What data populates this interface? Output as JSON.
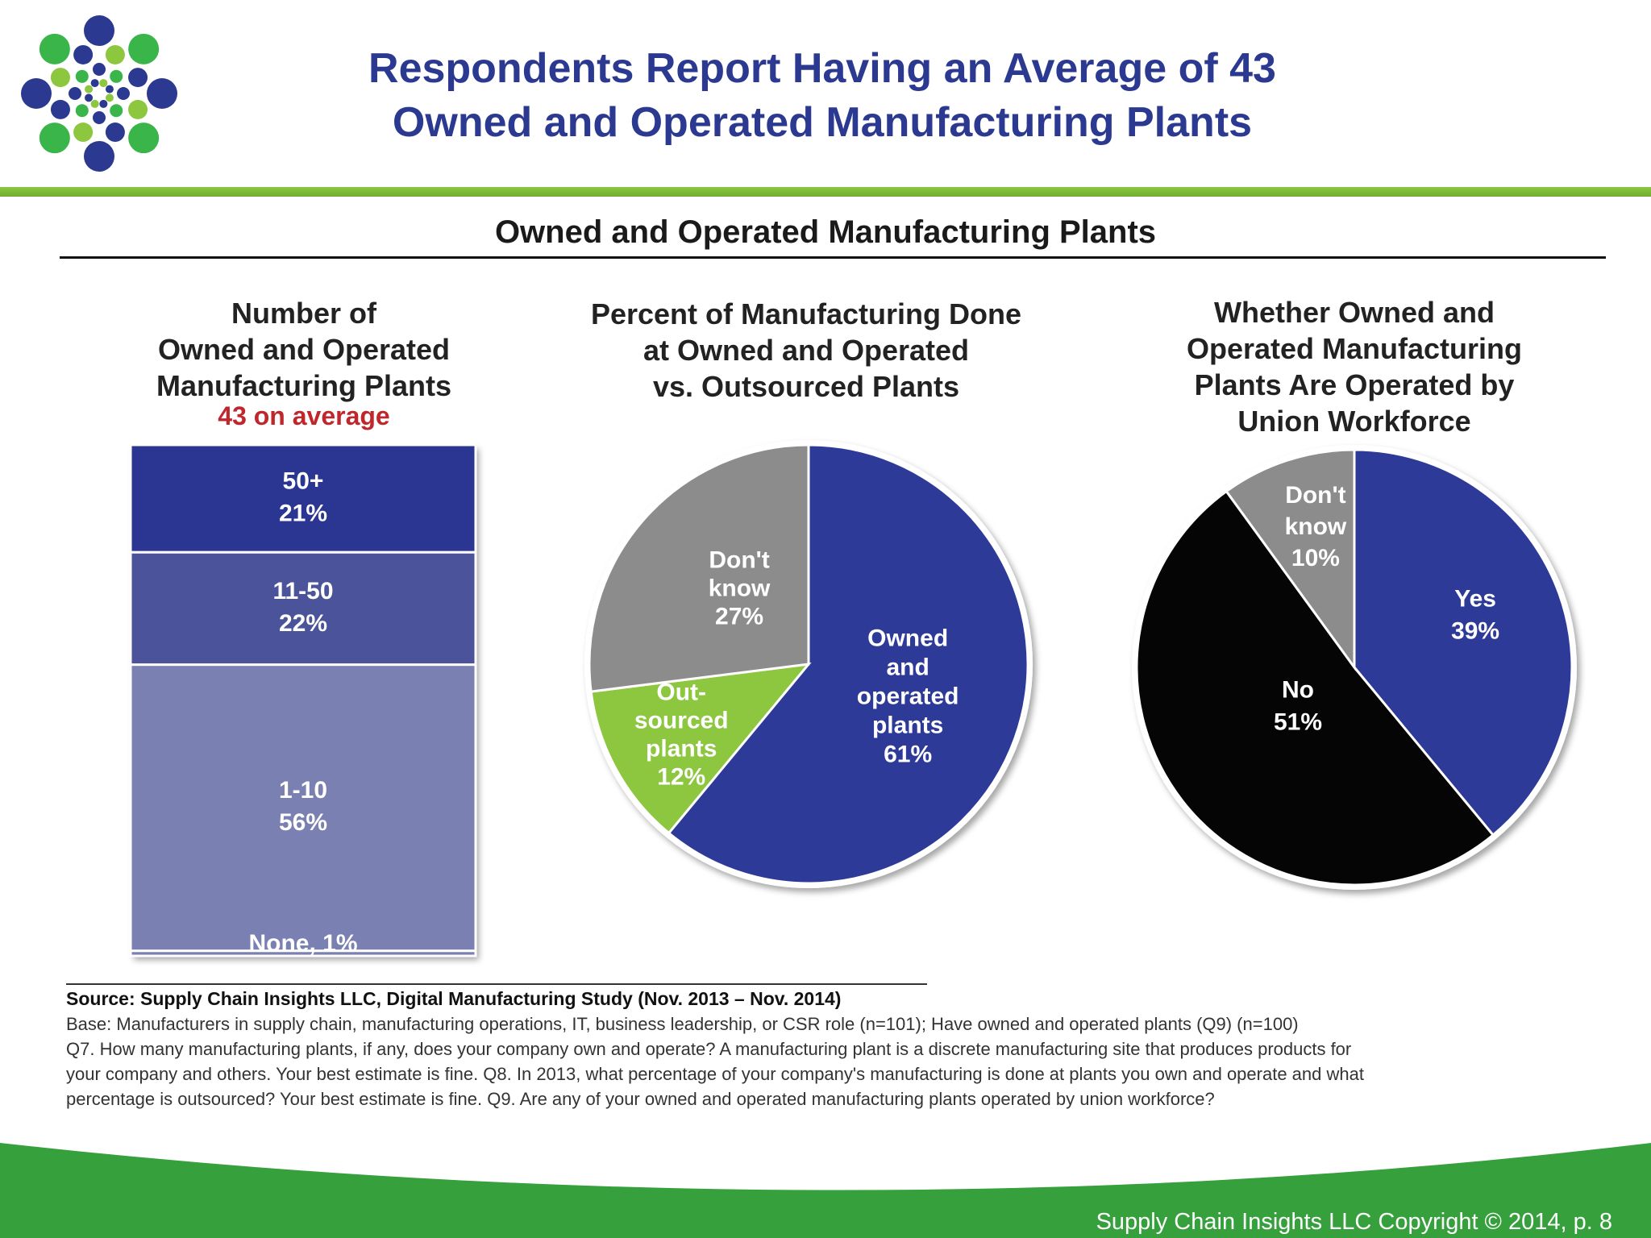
{
  "slide": {
    "title_line1": "Respondents Report Having an Average of 43",
    "title_line2": "Owned and Operated Manufacturing Plants",
    "copyright": "Supply Chain Insights LLC Copyright © 2014, p. 8"
  },
  "colors": {
    "title": "#2b3990",
    "accent_green": "#7cbf3a",
    "footer_green": "#35a03c",
    "average_note": "#c0272d"
  },
  "panel": {
    "title": "Owned and Operated Manufacturing Plants"
  },
  "chart_data": [
    {
      "type": "bar",
      "stacked": true,
      "title_lines": [
        "Number of",
        "Owned and Operated",
        "Manufacturing Plants"
      ],
      "note": "43 on average",
      "unit": "%",
      "categories": [
        "None",
        "1-10",
        "11-50",
        "50+"
      ],
      "values": [
        1,
        56,
        22,
        21
      ],
      "colors": [
        "#7a80b2",
        "#7a80b2",
        "#4b539a",
        "#2b3692"
      ],
      "segment_labels": [
        {
          "name": "None",
          "value": "None, 1%"
        },
        {
          "name": "1-10",
          "value": "56%"
        },
        {
          "name": "11-50",
          "value": "22%"
        },
        {
          "name": "50+",
          "value": "21%"
        }
      ]
    },
    {
      "type": "pie",
      "title_lines": [
        "Percent of Manufacturing Done",
        "at Owned and Operated",
        "vs. Outsourced Plants"
      ],
      "slices": [
        {
          "label": [
            "Owned",
            "and",
            "operated",
            "plants"
          ],
          "pct_text": "61%",
          "value": 61,
          "color": "#2e3a97",
          "text_color": "#ffffff"
        },
        {
          "label": [
            "Out-",
            "sourced",
            "plants"
          ],
          "pct_text": "12%",
          "value": 12,
          "color": "#8dc63f",
          "text_color": "#2e3a97"
        },
        {
          "label": [
            "Don't",
            "know"
          ],
          "pct_text": "27%",
          "value": 27,
          "color": "#8c8c8c",
          "text_color": "#ffffff"
        }
      ]
    },
    {
      "type": "pie",
      "title_lines": [
        "Whether Owned and",
        "Operated Manufacturing",
        "Plants Are Operated by",
        "Union Workforce"
      ],
      "slices": [
        {
          "label": [
            "Yes"
          ],
          "pct_text": "39%",
          "value": 39,
          "color": "#2e3a97",
          "text_color": "#ffffff"
        },
        {
          "label": [
            "No"
          ],
          "pct_text": "51%",
          "value": 51,
          "color": "#050505",
          "text_color": "#ffffff"
        },
        {
          "label": [
            "Don't",
            "know"
          ],
          "pct_text": "10%",
          "value": 10,
          "color": "#8c8c8c",
          "text_color": "#ffffff"
        }
      ]
    }
  ],
  "source": {
    "line0": "Source:  Supply Chain Insights LLC, Digital Manufacturing Study (Nov. 2013 – Nov. 2014)",
    "line1": "Base: Manufacturers in supply chain, manufacturing operations, IT, business leadership, or CSR role (n=101); Have owned and operated plants (Q9) (n=100)",
    "line2": "Q7. How many manufacturing plants, if any, does your company own and operate?  A manufacturing plant is a discrete manufacturing site that produces products for",
    "line3": "your company and others. Your best estimate is fine. Q8. In 2013, what percentage of your company's manufacturing is done at plants you own and operate and what",
    "line4": "percentage is outsourced? Your best estimate is fine. Q9. Are any of your owned and operated manufacturing plants operated by union workforce?"
  }
}
